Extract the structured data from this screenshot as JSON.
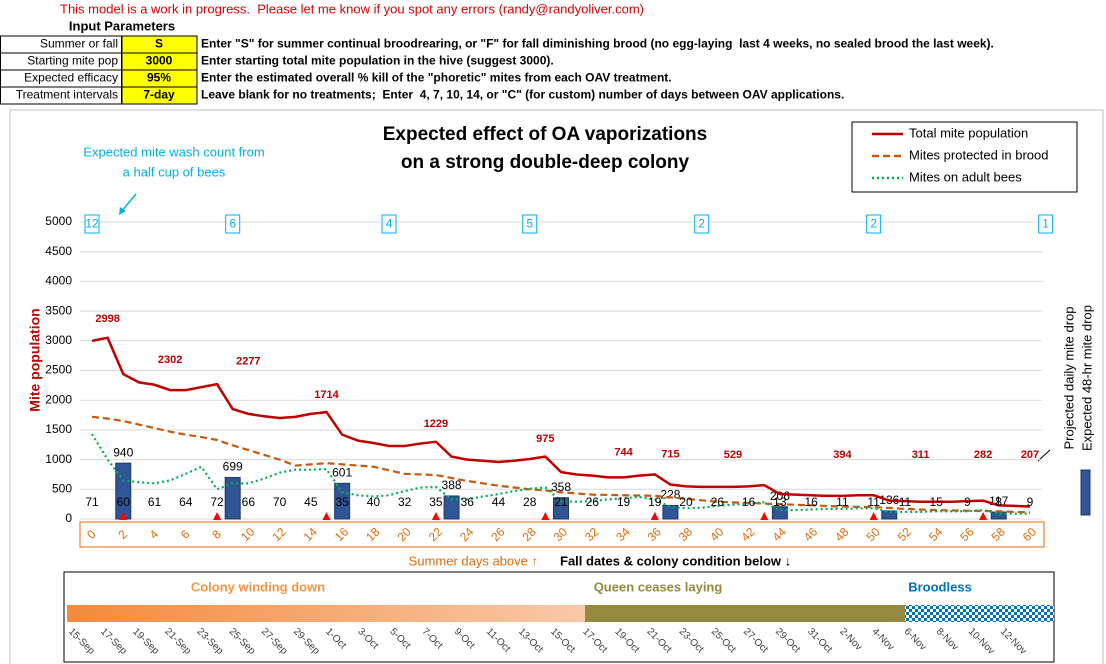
{
  "header_note": "This model is a work in progress.  Please let me know if you spot any errors (randy@randyoliver.com)",
  "inputs": {
    "title": "Input Parameters",
    "rows": [
      {
        "label": "Summer or fall",
        "value": "S",
        "description": "Enter \"S\" for summer continual broodrearing, or \"F\" for fall diminishing brood (no egg-laying  last 4 weeks, no sealed brood the last week)."
      },
      {
        "label": "Starting mite pop",
        "value": "3000",
        "description": "Enter starting total mite population in the hive (suggest 3000)."
      },
      {
        "label": "Expected efficacy",
        "value": "95%",
        "description": "Enter the estimated overall % kill of the \"phoretic\" mites from each OAV treatment."
      },
      {
        "label": "Treatment intervals",
        "value": "7-day",
        "description": "Leave blank for no treatments;  Enter  4, 7, 10, 14, or \"C\" (for custom) number of days between OAV applications."
      }
    ]
  },
  "chart_data": {
    "type": "line",
    "title": [
      "Expected effect of OA vaporizations",
      "on a strong double-deep colony"
    ],
    "y_label": "Mite population",
    "y2_labels": [
      "Projected daily mite drop",
      "Expected 48-hr mite drop"
    ],
    "wash_note": [
      "Expected mite wash count from",
      "a half cup of bees"
    ],
    "xlim": [
      0,
      60
    ],
    "xticks": [
      0,
      2,
      4,
      6,
      8,
      10,
      12,
      14,
      16,
      18,
      20,
      22,
      24,
      26,
      28,
      30,
      32,
      34,
      36,
      38,
      40,
      42,
      44,
      46,
      48,
      50,
      52,
      54,
      56,
      58,
      60
    ],
    "ylim": [
      0,
      5000
    ],
    "yticks": [
      0,
      500,
      1000,
      1500,
      2000,
      2500,
      3000,
      3500,
      4000,
      4500,
      5000
    ],
    "grid": true,
    "x": [
      0,
      1,
      2,
      3,
      4,
      5,
      6,
      7,
      8,
      9,
      10,
      11,
      12,
      13,
      14,
      15,
      16,
      17,
      18,
      19,
      20,
      21,
      22,
      23,
      24,
      25,
      26,
      27,
      28,
      29,
      30,
      31,
      32,
      33,
      34,
      35,
      36,
      37,
      38,
      39,
      40,
      41,
      42,
      43,
      44,
      45,
      46,
      47,
      48,
      49,
      50,
      51,
      52,
      53,
      54,
      55,
      56,
      57,
      58,
      59,
      60
    ],
    "series": [
      {
        "name": "Total mite population",
        "color": "#c00000",
        "style": "solid",
        "values": [
          3000,
          3050,
          2440,
          2300,
          2260,
          2170,
          2170,
          2220,
          2270,
          1850,
          1770,
          1730,
          1700,
          1720,
          1770,
          1800,
          1420,
          1320,
          1280,
          1230,
          1230,
          1270,
          1300,
          1050,
          1000,
          980,
          960,
          980,
          1010,
          1050,
          790,
          750,
          730,
          700,
          700,
          730,
          750,
          580,
          550,
          540,
          540,
          540,
          550,
          570,
          420,
          410,
          400,
          390,
          390,
          400,
          400,
          310,
          300,
          290,
          290,
          290,
          300,
          310,
          230,
          220,
          210
        ]
      },
      {
        "name": "Mites protected in brood",
        "color": "#c55a11",
        "style": "dashed",
        "values": [
          1720,
          1690,
          1650,
          1590,
          1530,
          1470,
          1420,
          1380,
          1330,
          1240,
          1160,
          1080,
          1000,
          900,
          920,
          940,
          920,
          900,
          880,
          820,
          760,
          750,
          740,
          690,
          640,
          600,
          560,
          530,
          500,
          480,
          450,
          430,
          410,
          405,
          400,
          395,
          390,
          365,
          340,
          315,
          290,
          280,
          270,
          260,
          250,
          240,
          230,
          220,
          210,
          205,
          200,
          185,
          170,
          160,
          150,
          145,
          140,
          135,
          130,
          120,
          110
        ]
      },
      {
        "name": "Mites on adult bees",
        "color": "#00b050",
        "style": "dotted",
        "values": [
          1430,
          1000,
          650,
          620,
          600,
          650,
          760,
          880,
          500,
          600,
          600,
          680,
          780,
          830,
          830,
          840,
          450,
          400,
          380,
          400,
          470,
          530,
          540,
          330,
          330,
          380,
          420,
          470,
          510,
          530,
          300,
          290,
          300,
          330,
          350,
          370,
          330,
          200,
          180,
          190,
          220,
          240,
          260,
          280,
          150,
          150,
          160,
          170,
          170,
          180,
          180,
          120,
          120,
          120,
          130,
          130,
          130,
          150,
          90,
          90,
          90
        ]
      }
    ],
    "bars": {
      "color": "#2f5597",
      "x": [
        2,
        9,
        16,
        23,
        30,
        37,
        44,
        51,
        58
      ],
      "values": [
        940,
        699,
        601,
        388,
        358,
        228,
        206,
        136,
        117
      ]
    },
    "total_labels": {
      "color": "#c00000",
      "x": [
        1,
        5,
        10,
        15,
        22,
        29,
        34,
        37,
        41,
        48,
        53,
        57,
        60
      ],
      "values": [
        2998,
        2302,
        2277,
        1714,
        1229,
        975,
        744,
        715,
        529,
        394,
        311,
        282,
        207
      ]
    },
    "wash_counts": {
      "x": [
        0,
        2,
        4,
        6,
        8,
        10,
        12,
        14,
        16,
        18,
        20,
        22,
        24,
        26,
        28,
        30,
        32,
        34,
        36,
        38,
        40,
        42,
        44,
        46,
        48,
        50,
        52,
        54,
        56,
        58,
        60
      ],
      "values": [
        71,
        60,
        61,
        64,
        72,
        66,
        70,
        45,
        35,
        40,
        32,
        35,
        36,
        44,
        28,
        21,
        26,
        19,
        19,
        20,
        26,
        16,
        13,
        16,
        11,
        11,
        11,
        15,
        9,
        8,
        9
      ]
    },
    "wash_boxes": {
      "color": "#00b0f0",
      "x": [
        0,
        9,
        19,
        28,
        39,
        50,
        61
      ],
      "values": [
        12,
        6,
        4,
        5,
        2,
        2,
        1
      ]
    },
    "treatment_days": [
      2,
      8,
      15,
      22,
      29,
      36,
      43,
      50,
      57
    ],
    "summer_note": "Summer days above ↑",
    "fall_note": "Fall dates & colony condition below ↓",
    "phases": [
      {
        "label": "Colony winding down",
        "color": "#f79646"
      },
      {
        "label": "Queen ceases laying",
        "color": "#948a3f"
      },
      {
        "label": "Broodless",
        "color": "#0070c0"
      }
    ],
    "dates": [
      "15-Sep",
      "17-Sep",
      "19-Sep",
      "21-Sep",
      "23-Sep",
      "25-Sep",
      "27-Sep",
      "29-Sep",
      "1-Oct",
      "3-Oct",
      "5-Oct",
      "7-Oct",
      "9-Oct",
      "11-Oct",
      "13-Oct",
      "15-Oct",
      "17-Oct",
      "19-Oct",
      "21-Oct",
      "23-Oct",
      "25-Oct",
      "27-Oct",
      "29-Oct",
      "31-Oct",
      "2-Nov",
      "4-Nov",
      "6-Nov",
      "8-Nov",
      "10-Nov",
      "12-Nov"
    ]
  }
}
